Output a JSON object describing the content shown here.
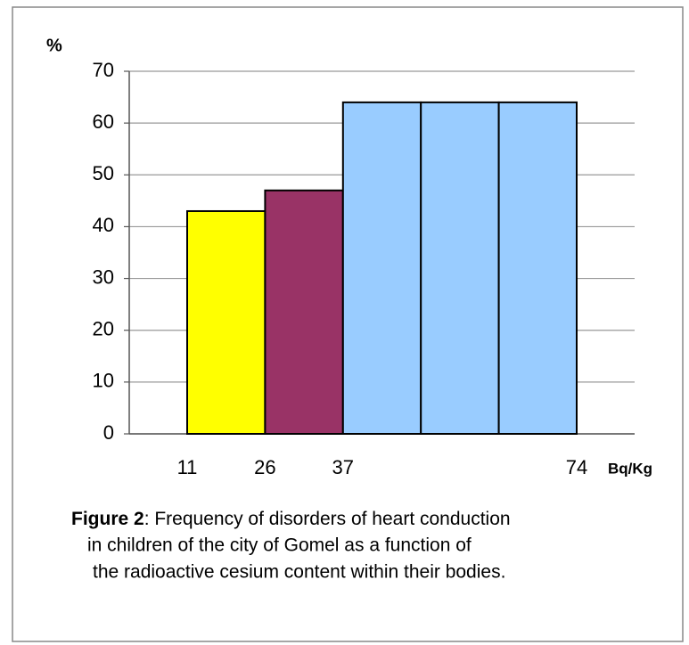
{
  "chart_data": {
    "type": "histogram",
    "ylabel": "%",
    "xlabel": "Bq/Kg",
    "bins": [
      11,
      26,
      37,
      null,
      null,
      74
    ],
    "values": [
      43,
      47,
      64,
      64,
      64
    ],
    "colors": [
      "#ffff00",
      "#993366",
      "#99ccff",
      "#99ccff",
      "#99ccff"
    ],
    "ylim": [
      0,
      70
    ],
    "yticks": [
      0,
      10,
      20,
      30,
      40,
      50,
      60,
      70
    ],
    "grid": true,
    "caption": {
      "label": "Figure 2",
      "lines": [
        ": Frequency of disorders of heart conduction",
        "in children of the city of Gomel as a function of",
        "the radioactive cesium content within their bodies."
      ]
    }
  }
}
